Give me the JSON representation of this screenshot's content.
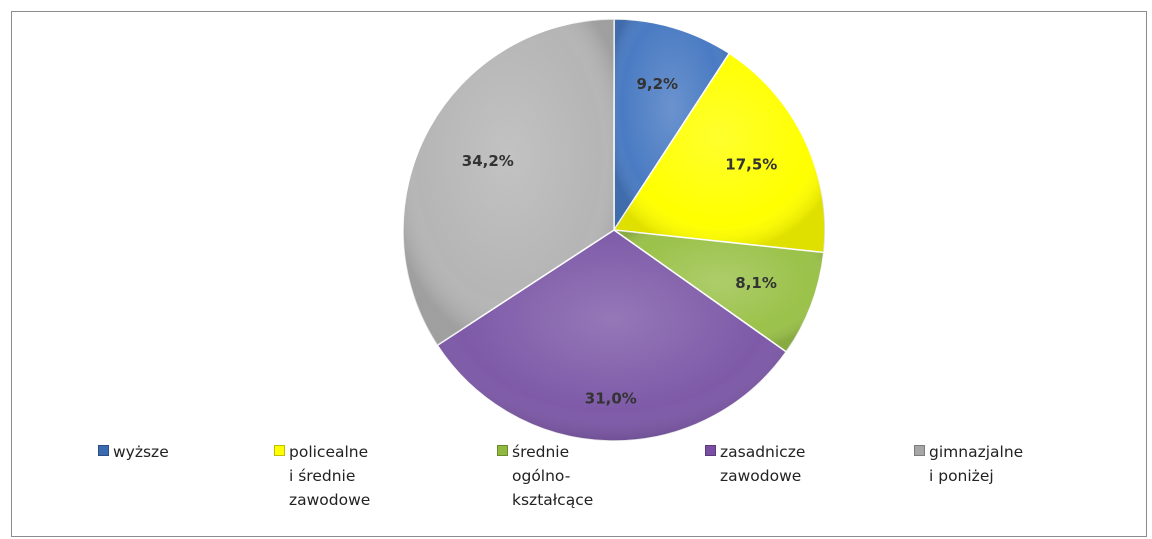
{
  "chart_data": {
    "type": "pie",
    "title": "",
    "categories": [
      "wyższe",
      "policealne i średnie zawodowe",
      "średnie ogólno-kształcące",
      "zasadnicze zawodowe",
      "gimnazjalne i poniżej"
    ],
    "values": [
      9.2,
      17.5,
      8.1,
      31.0,
      34.2
    ],
    "unit": "%",
    "slice_labels": [
      "9,2%",
      "17,5%",
      "8,1%",
      "31,0%",
      "34,2%"
    ],
    "colors": [
      "#4a7bc3",
      "#ffff00",
      "#9bc24a",
      "#7e5aa8",
      "#b5b5b5"
    ],
    "start_angle_deg": 0,
    "direction": "clockwise",
    "legend": {
      "placement": "bottom",
      "items": [
        {
          "lines": [
            "wyższe"
          ],
          "color": "#3a6ab0"
        },
        {
          "lines": [
            "policealne",
            "i średnie",
            "zawodowe"
          ],
          "color": "#ffff00"
        },
        {
          "lines": [
            "średnie",
            "ogólno-",
            "kształcące"
          ],
          "color": "#8fb83f"
        },
        {
          "lines": [
            "zasadnicze",
            "zawodowe"
          ],
          "color": "#7a4fa3"
        },
        {
          "lines": [
            "gimnazjalne",
            "i poniżej"
          ],
          "color": "#a6a6a6"
        }
      ]
    }
  }
}
